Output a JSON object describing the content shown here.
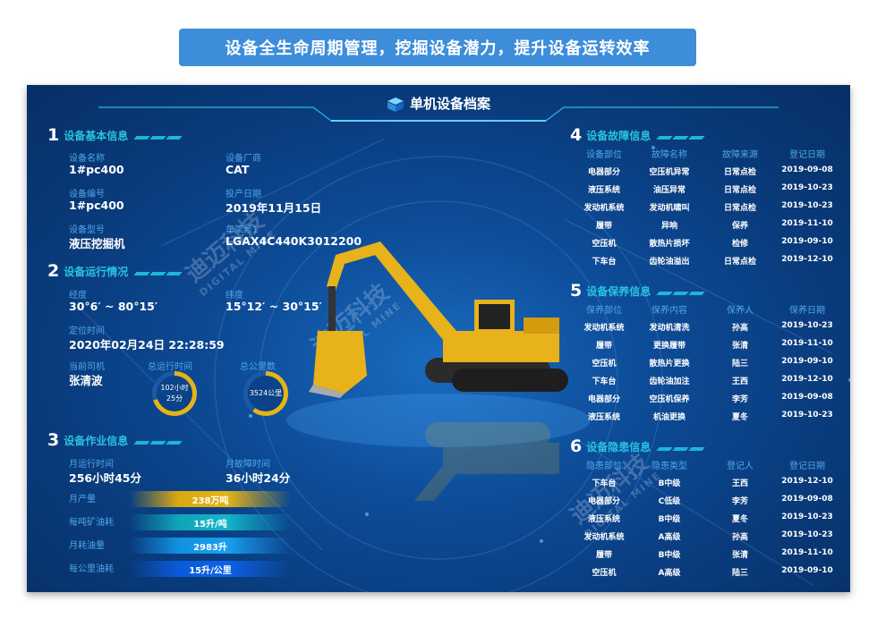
{
  "banner": {
    "title": "设备全生命周期管理，挖掘设备潜力，提升设备运转效率"
  },
  "panel": {
    "title": "单机设备档案"
  },
  "watermark": {
    "cn": "迪迈科技",
    "en": "DIGITAL MINE"
  },
  "colors": {
    "accent": "#29c3e0",
    "label": "#4ea6e8",
    "panel_bg": "#0a3a78",
    "banner_bg": "#3d8ddb",
    "yellow": "#e6b417"
  },
  "sections": {
    "s1": {
      "num": "1",
      "title": "设备基本信息"
    },
    "s2": {
      "num": "2",
      "title": "设备运行情况"
    },
    "s3": {
      "num": "3",
      "title": "设备作业信息"
    },
    "s4": {
      "num": "4",
      "title": "设备故障信息"
    },
    "s5": {
      "num": "5",
      "title": "设备保养信息"
    },
    "s6": {
      "num": "6",
      "title": "设备隐患信息"
    }
  },
  "basic": {
    "name_label": "设备名称",
    "name": "1#pc400",
    "maker_label": "设备厂商",
    "maker": "CAT",
    "code_label": "设备编号",
    "code": "1#pc400",
    "date_label": "投产日期",
    "date": "2019年11月15日",
    "model_label": "设备型号",
    "model": "液压挖掘机",
    "frame_label": "车架号1",
    "frame": "LGAX4C440K3012200"
  },
  "running": {
    "lon_label": "经度",
    "lon": "30°6′ ~ 80°15′",
    "lat_label": "纬度",
    "lat": "15°12′ ~ 30°15′",
    "time_label": "定位时间",
    "time": "2020年02月24日 22:28:59",
    "driver_label": "当前司机",
    "driver": "张清波",
    "total_time_label": "总运行时间",
    "total_time_1": "102小时",
    "total_time_2": "25分",
    "total_km_label": "总公里数",
    "total_km": "3524公里"
  },
  "work": {
    "month_run_label": "月运行时间",
    "month_run": "256小时45分",
    "month_fault_label": "月故障时间",
    "month_fault": "36小时24分",
    "bars": [
      {
        "label": "月产量",
        "value": "238万吨"
      },
      {
        "label": "每吨矿油耗",
        "value": "15升/吨"
      },
      {
        "label": "月耗油量",
        "value": "2983升"
      },
      {
        "label": "每公里油耗",
        "value": "15升/公里"
      }
    ]
  },
  "fault": {
    "headers": [
      "设备部位",
      "故障名称",
      "故障来源",
      "登记日期"
    ],
    "rows": [
      [
        "电器部分",
        "空压机异常",
        "日常点检",
        "2019-09-08"
      ],
      [
        "液压系统",
        "油压异常",
        "日常点检",
        "2019-10-23"
      ],
      [
        "发动机系统",
        "发动机啸叫",
        "日常点检",
        "2019-10-23"
      ],
      [
        "履带",
        "异响",
        "保养",
        "2019-11-10"
      ],
      [
        "空压机",
        "散热片损坏",
        "检修",
        "2019-09-10"
      ],
      [
        "下车台",
        "齿轮油溢出",
        "日常点检",
        "2019-12-10"
      ]
    ]
  },
  "maintain": {
    "headers": [
      "保养部位",
      "保养内容",
      "保养人",
      "保养日期"
    ],
    "rows": [
      [
        "发动机系统",
        "发动机清洗",
        "孙高",
        "2019-10-23"
      ],
      [
        "履带",
        "更换履带",
        "张清",
        "2019-11-10"
      ],
      [
        "空压机",
        "散热片更换",
        "陆三",
        "2019-09-10"
      ],
      [
        "下车台",
        "齿轮油加注",
        "王西",
        "2019-12-10"
      ],
      [
        "电器部分",
        "空压机保养",
        "李芳",
        "2019-09-08"
      ],
      [
        "液压系统",
        "机油更换",
        "夏冬",
        "2019-10-23"
      ]
    ]
  },
  "hazard": {
    "headers": [
      "隐患部位",
      "隐患类型",
      "登记人",
      "登记日期"
    ],
    "rows": [
      [
        "下车台",
        "B中级",
        "王西",
        "2019-12-10"
      ],
      [
        "电器部分",
        "C低级",
        "李芳",
        "2019-09-08"
      ],
      [
        "液压系统",
        "B中级",
        "夏冬",
        "2019-10-23"
      ],
      [
        "发动机系统",
        "A高级",
        "孙高",
        "2019-10-23"
      ],
      [
        "履带",
        "B中级",
        "张清",
        "2019-11-10"
      ],
      [
        "空压机",
        "A高级",
        "陆三",
        "2019-09-10"
      ]
    ]
  }
}
